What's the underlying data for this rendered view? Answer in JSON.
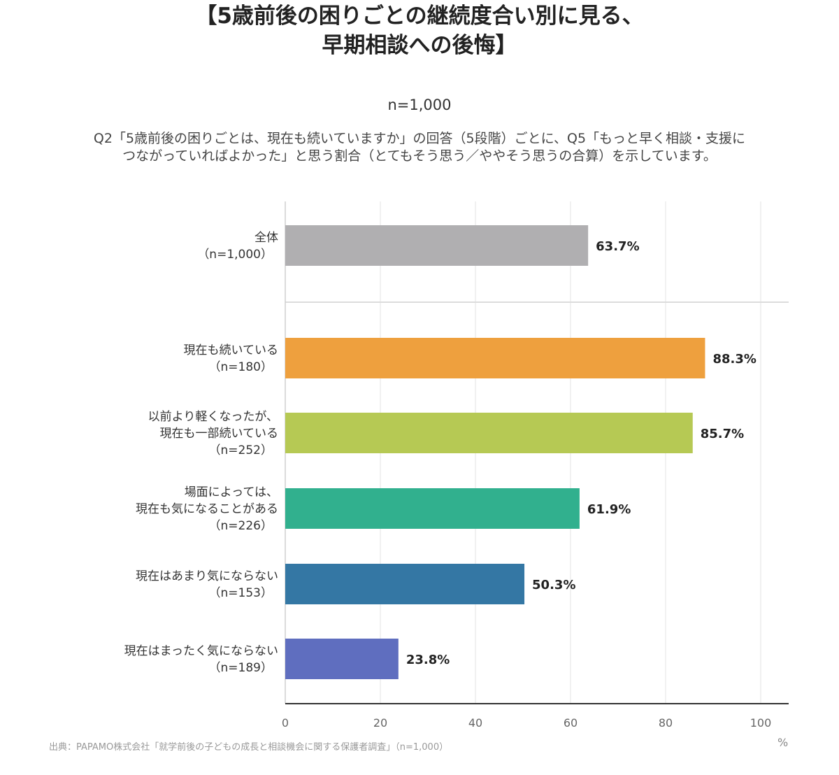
{
  "header": {
    "title_line1": "【5歳前後の困りごとの継続度合い別に見る、",
    "title_line2": "早期相談への後悔】",
    "n_label": "n=1,000",
    "desc_line1": "Q2「5歳前後の困りごとは、現在も続いていますか」の回答（5段階）ごとに、Q5「もっと早く相談・支援に",
    "desc_line2": "つながっていればよかった」と思う割合（とてもそう思う／ややそう思うの合算）を示しています。"
  },
  "chart_data": {
    "type": "bar",
    "orientation": "horizontal",
    "categories": [
      {
        "lines": [
          "全体",
          "（n=1,000）"
        ]
      },
      {
        "lines": [
          "現在も続いている",
          "（n=180）"
        ]
      },
      {
        "lines": [
          "以前より軽くなったが、",
          "現在も一部続いている",
          "（n=252）"
        ]
      },
      {
        "lines": [
          "場面によっては、",
          "現在も気になることがある",
          "（n=226）"
        ]
      },
      {
        "lines": [
          "現在はあまり気にならない",
          "（n=153）"
        ]
      },
      {
        "lines": [
          "現在はまったく気にならない",
          "（n=189）"
        ]
      }
    ],
    "values": [
      63.7,
      88.3,
      85.7,
      61.9,
      50.3,
      23.8
    ],
    "value_labels": [
      "63.7%",
      "88.3%",
      "85.7%",
      "61.9%",
      "50.3%",
      "23.8%"
    ],
    "colors": [
      "#b0afb1",
      "#eea03e",
      "#b6c954",
      "#31b08e",
      "#3477a4",
      "#5f6ebf"
    ],
    "xlim": [
      0,
      100
    ],
    "xticks": [
      "0",
      "20",
      "40",
      "60",
      "80",
      "100"
    ],
    "xunit": "%",
    "grid": true
  },
  "footer": {
    "source": "出典：PAPAMO株式会社「就学前後の子どもの成長と相談機会に関する保護者調査」（n=1,000）"
  }
}
